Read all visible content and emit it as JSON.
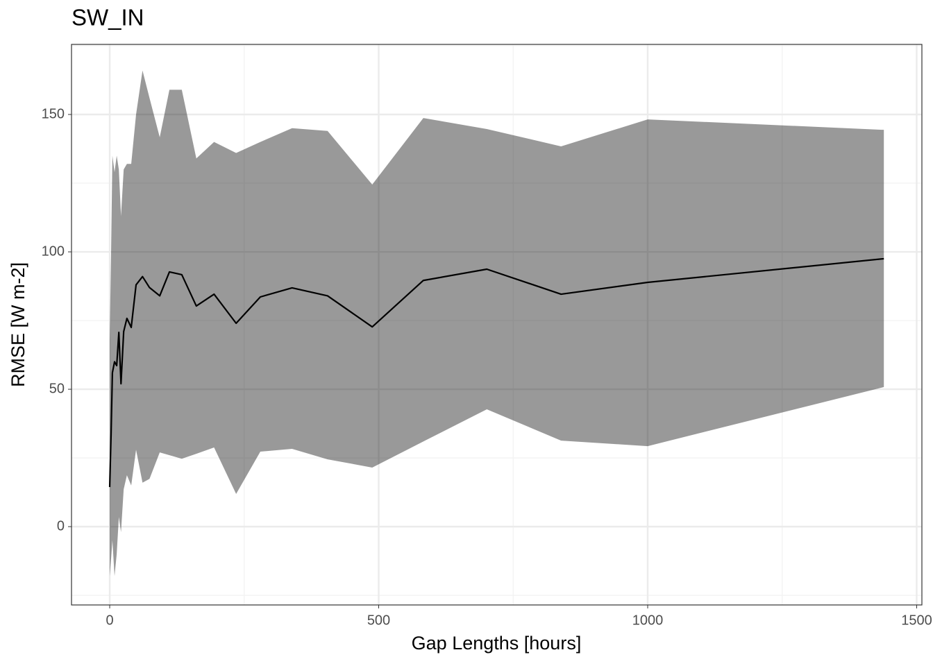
{
  "chart_data": {
    "type": "line",
    "title": "SW_IN",
    "xlabel": "Gap Lengths [hours]",
    "ylabel": "RMSE [W m-2]",
    "x": [
      0,
      2.6,
      5,
      9,
      13,
      17,
      21,
      26,
      32,
      40,
      49,
      61,
      74,
      93,
      111,
      134,
      161,
      194,
      235,
      280,
      339,
      405,
      488,
      583,
      701,
      839,
      1000,
      1439
    ],
    "series": [
      {
        "color": "#000000",
        "ribbon_color": "#000000",
        "ribbon_alpha": 0.4,
        "values": [
          14.4,
          33.8,
          56,
          60,
          58.6,
          70.7,
          52,
          71,
          75.8,
          72.5,
          88,
          91,
          87,
          84,
          92.7,
          91.7,
          80.3,
          84.6,
          74,
          83.6,
          86.9,
          84,
          72.7,
          89.6,
          93.7,
          84.6,
          88.9,
          97.5
        ],
        "lower": [
          -18,
          -11.6,
          -5,
          -18,
          -10,
          3.5,
          -2,
          13.6,
          18.7,
          15,
          28,
          16,
          17.4,
          27,
          26,
          24.7,
          26.5,
          28.8,
          11.9,
          27.3,
          28.3,
          24.5,
          21.5,
          31,
          42.7,
          31.3,
          29.3,
          50.8
        ],
        "upper": [
          68,
          100,
          135,
          129,
          135,
          130,
          113,
          130,
          132,
          132,
          150,
          166,
          156,
          141.7,
          159,
          159,
          134,
          140,
          136,
          140,
          145,
          144,
          124.5,
          148.7,
          144.7,
          138.4,
          148.2,
          144.4
        ]
      }
    ],
    "xlim": [
      -71,
      1509.7
    ],
    "ylim": [
      -28.5,
      175.5
    ],
    "xticks": [
      0,
      500,
      1000,
      1500
    ],
    "yticks": [
      0,
      50,
      100,
      150
    ],
    "grid": true
  }
}
